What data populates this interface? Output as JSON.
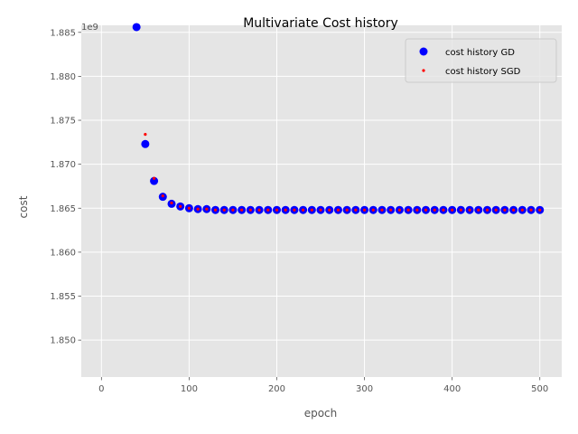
{
  "chart_data": {
    "type": "scatter",
    "title": "Multivariate Cost history",
    "xlabel": "epoch",
    "ylabel": "cost",
    "y_offset_label": "1e9",
    "xlim": [
      -23,
      525
    ],
    "ylim": [
      1.8458,
      1.8858
    ],
    "xticks": [
      0,
      100,
      200,
      300,
      400,
      500
    ],
    "yticks": [
      1.85,
      1.855,
      1.86,
      1.865,
      1.87,
      1.875,
      1.88,
      1.885
    ],
    "ytick_labels": [
      "1.850",
      "1.855",
      "1.860",
      "1.865",
      "1.870",
      "1.875",
      "1.880",
      "1.885"
    ],
    "grid": true,
    "legend_position": "top-right",
    "background_color": "#e5e5e5",
    "series": [
      {
        "name": "cost history GD",
        "marker": "large-dot",
        "color": "#0000ff",
        "x": [
          40,
          50,
          60,
          70,
          80,
          90,
          100,
          110,
          120,
          130,
          140,
          150,
          160,
          170,
          180,
          190,
          200,
          210,
          220,
          230,
          240,
          250,
          260,
          270,
          280,
          290,
          300,
          310,
          320,
          330,
          340,
          350,
          360,
          370,
          380,
          390,
          400,
          410,
          420,
          430,
          440,
          450,
          460,
          470,
          480,
          490,
          500
        ],
        "y": [
          1.8856,
          1.8723,
          1.8681,
          1.8663,
          1.8655,
          1.8652,
          1.865,
          1.8649,
          1.8649,
          1.8648,
          1.8648,
          1.8648,
          1.8648,
          1.8648,
          1.8648,
          1.8648,
          1.8648,
          1.8648,
          1.8648,
          1.8648,
          1.8648,
          1.8648,
          1.8648,
          1.8648,
          1.8648,
          1.8648,
          1.8648,
          1.8648,
          1.8648,
          1.8648,
          1.8648,
          1.8648,
          1.8648,
          1.8648,
          1.8648,
          1.8648,
          1.8648,
          1.8648,
          1.8648,
          1.8648,
          1.8648,
          1.8648,
          1.8648,
          1.8648,
          1.8648,
          1.8648,
          1.8648
        ]
      },
      {
        "name": "cost history SGD",
        "marker": "small-dot",
        "color": "#ff0000",
        "x": [
          50,
          60,
          70,
          80,
          90,
          100,
          110,
          120,
          130,
          140,
          150,
          160,
          170,
          180,
          190,
          200,
          210,
          220,
          230,
          240,
          250,
          260,
          270,
          280,
          290,
          300,
          310,
          320,
          330,
          340,
          350,
          360,
          370,
          380,
          390,
          400,
          410,
          420,
          430,
          440,
          450,
          460,
          470,
          480,
          490,
          500
        ],
        "y": [
          1.8734,
          1.8684,
          1.8664,
          1.8656,
          1.8652,
          1.865,
          1.8649,
          1.8649,
          1.8648,
          1.8648,
          1.8648,
          1.8648,
          1.8648,
          1.8648,
          1.8648,
          1.8648,
          1.8648,
          1.8648,
          1.8648,
          1.8648,
          1.8648,
          1.8648,
          1.8648,
          1.8648,
          1.8648,
          1.8648,
          1.8648,
          1.8648,
          1.8648,
          1.8648,
          1.8648,
          1.8648,
          1.8648,
          1.8648,
          1.8648,
          1.8648,
          1.8648,
          1.8648,
          1.8648,
          1.8648,
          1.8648,
          1.8648,
          1.8648,
          1.8648,
          1.8648,
          1.8648
        ]
      }
    ]
  }
}
